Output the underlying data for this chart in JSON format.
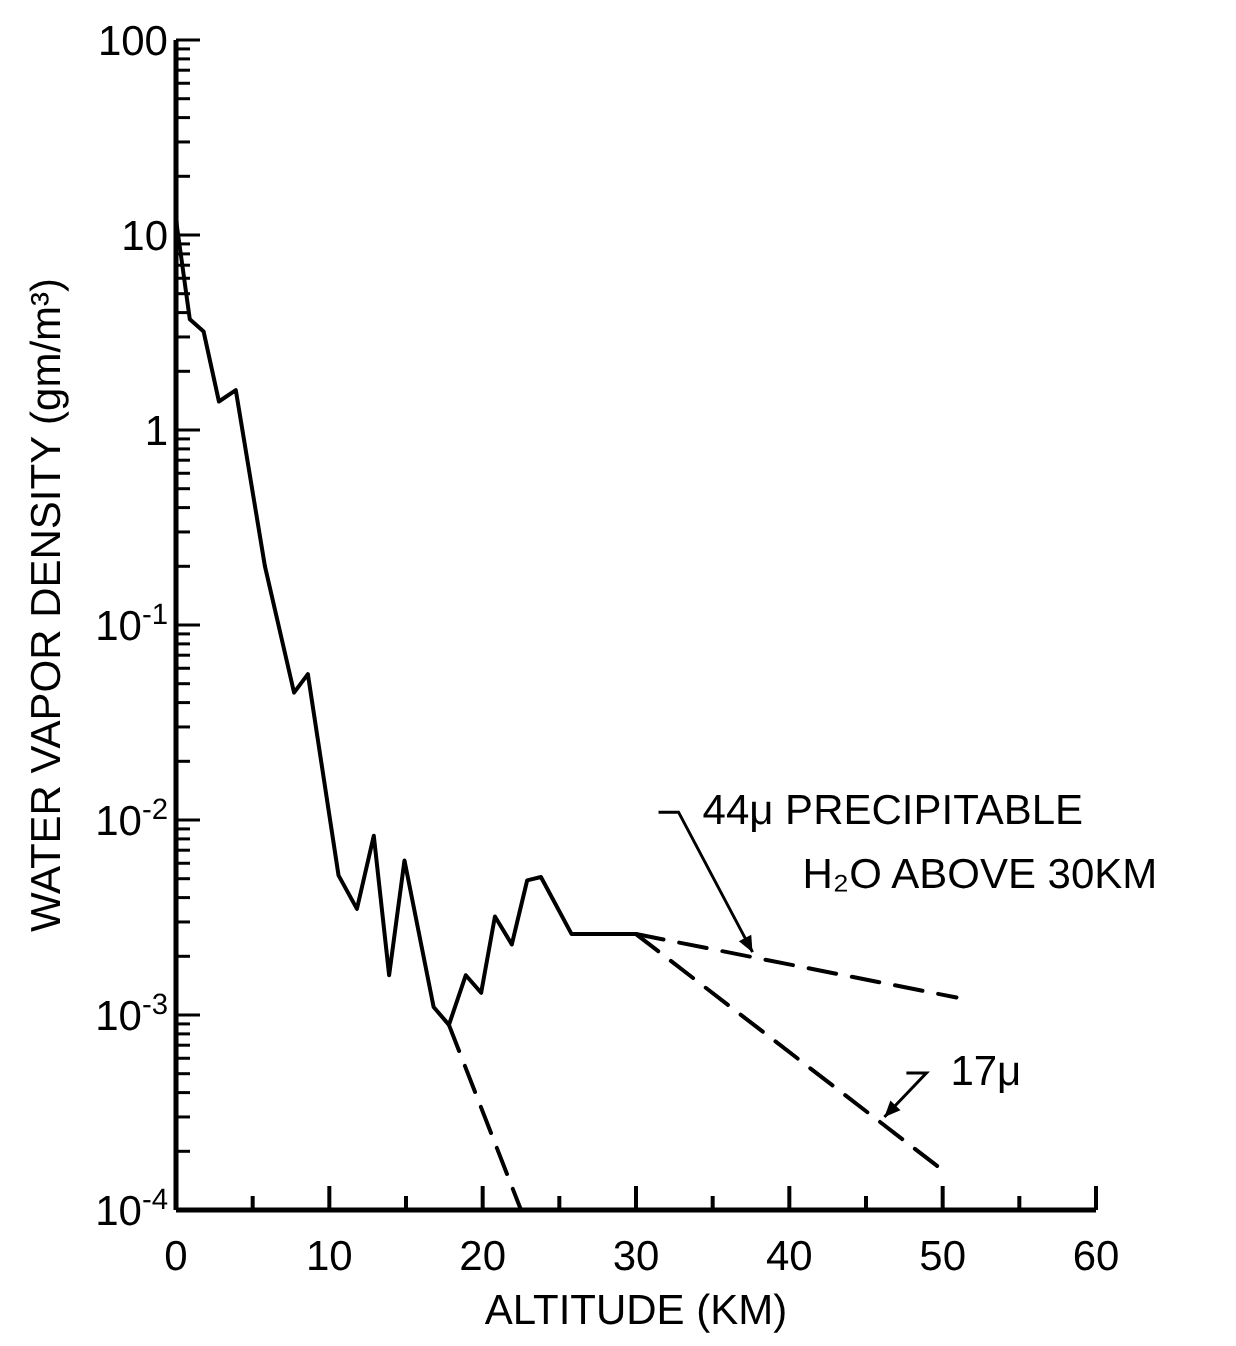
{
  "chart_data": {
    "type": "line",
    "xlabel": "ALTITUDE (KM)",
    "ylabel": "WATER VAPOR DENSITY (gm/m³)",
    "log": "y",
    "grid": false,
    "marker": "none",
    "xlim": [
      0,
      60
    ],
    "ylim": [
      0.0001,
      100
    ],
    "xticks": [
      0,
      {
        "value": 5,
        "label": null
      },
      10,
      {
        "value": 15,
        "label": null
      },
      20,
      {
        "value": 25,
        "label": null
      },
      30,
      {
        "value": 35,
        "label": null
      },
      40,
      {
        "value": 45,
        "label": null
      },
      50,
      {
        "value": 55,
        "label": null
      },
      60
    ],
    "yticks": [
      {
        "value": 0.0001,
        "label": "10$^{-4}$"
      },
      {
        "value": 0.0002,
        "label": null
      },
      {
        "value": 0.0003,
        "label": null
      },
      {
        "value": 0.0004,
        "label": null
      },
      {
        "value": 0.0005,
        "label": null
      },
      {
        "value": 0.0006,
        "label": null
      },
      {
        "value": 0.0007,
        "label": null
      },
      {
        "value": 0.0008,
        "label": null
      },
      {
        "value": 0.0009,
        "label": null
      },
      {
        "value": 0.001,
        "label": "10$^{-3}$"
      },
      {
        "value": 0.002,
        "label": null
      },
      {
        "value": 0.003,
        "label": null
      },
      {
        "value": 0.004,
        "label": null
      },
      {
        "value": 0.005,
        "label": null
      },
      {
        "value": 0.006,
        "label": null
      },
      {
        "value": 0.007,
        "label": null
      },
      {
        "value": 0.008,
        "label": null
      },
      {
        "value": 0.009,
        "label": null
      },
      {
        "value": 0.01,
        "label": "10$^{-2}$"
      },
      {
        "value": 0.02,
        "label": null
      },
      {
        "value": 0.03,
        "label": null
      },
      {
        "value": 0.04,
        "label": null
      },
      {
        "value": 0.05,
        "label": null
      },
      {
        "value": 0.06,
        "label": null
      },
      {
        "value": 0.07,
        "label": null
      },
      {
        "value": 0.08,
        "label": null
      },
      {
        "value": 0.09,
        "label": null
      },
      {
        "value": 0.1,
        "label": "10$^{-1}$"
      },
      {
        "value": 0.2,
        "label": null
      },
      {
        "value": 0.3,
        "label": null
      },
      {
        "value": 0.4,
        "label": null
      },
      {
        "value": 0.5,
        "label": null
      },
      {
        "value": 0.6,
        "label": null
      },
      {
        "value": 0.7,
        "label": null
      },
      {
        "value": 0.8,
        "label": null
      },
      {
        "value": 0.9,
        "label": null
      },
      1,
      {
        "value": 2,
        "label": null
      },
      {
        "value": 3,
        "label": null
      },
      {
        "value": 4,
        "label": null
      },
      {
        "value": 5,
        "label": null
      },
      {
        "value": 6,
        "label": null
      },
      {
        "value": 7,
        "label": null
      },
      {
        "value": 8,
        "label": null
      },
      {
        "value": 9,
        "label": null
      },
      10,
      {
        "value": 20,
        "label": null
      },
      {
        "value": 30,
        "label": null
      },
      {
        "value": 40,
        "label": null
      },
      {
        "value": 50,
        "label": null
      },
      {
        "value": 60,
        "label": null
      },
      {
        "value": 70,
        "label": null
      },
      {
        "value": 80,
        "label": null
      },
      {
        "value": 90,
        "label": null
      },
      100
    ],
    "series": [
      {
        "color": "#000000",
        "line_style": "solid",
        "x": [
          0,
          0.9,
          1.8,
          2.8,
          3.9,
          5.8,
          7.7,
          8.6,
          10.6,
          11.8,
          12.9,
          13.9,
          14.9,
          16.8,
          17.8,
          18.9,
          19.9,
          20.8,
          21.9,
          22.9,
          23.8,
          25.8,
          30
        ],
        "values": [
          12,
          3.7,
          3.2,
          1.4,
          1.6,
          0.2,
          0.045,
          0.056,
          0.0052,
          0.0035,
          0.0083,
          0.0016,
          0.0062,
          0.0011,
          0.00089,
          0.0016,
          0.0013,
          0.0032,
          0.0023,
          0.0049,
          0.0051,
          0.0026,
          0.0026
        ]
      },
      {
        "color": "#000000",
        "line_style": "dashed",
        "x": [
          30,
          50.9
        ],
        "values": [
          0.0026,
          0.00123
        ]
      },
      {
        "color": "#000000",
        "line_style": "dashed",
        "x": [
          30,
          50
        ],
        "values": [
          0.0026,
          0.00016
        ]
      },
      {
        "color": "#000000",
        "line_style": "dashed",
        "x": [
          17.8,
          22.5
        ],
        "values": [
          0.00089,
          0.0001
        ]
      }
    ],
    "annotations": [
      {
        "text": "44μ PRECIPITABLE\nH₂O ABOVE 30KM",
        "x": 37.6,
        "y": 0.0021
      },
      {
        "text": "17μ",
        "x": 46.2,
        "y": 0.0003
      }
    ]
  }
}
